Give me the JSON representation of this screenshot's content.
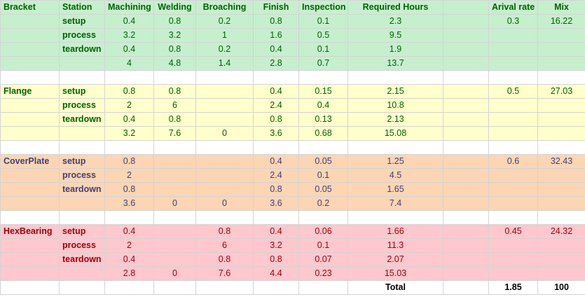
{
  "header": {
    "part": "Bracket",
    "station": "Station",
    "machining": "Machining",
    "welding": "Welding",
    "broaching": "Broaching",
    "finish": "Finish",
    "inspection": "Inspection",
    "required": "Required Hours",
    "arrival": "Arival rate",
    "mix": "Mix"
  },
  "blocks": [
    {
      "name": "",
      "bg": "#c6efce",
      "fg": "#006100",
      "arrival": "0.3",
      "mix": "16.22",
      "rows": [
        {
          "label": "setup",
          "m": "0.4",
          "w": "0.8",
          "b": "0.2",
          "f": "0.8",
          "i": "0.1",
          "r": "2.3"
        },
        {
          "label": "process",
          "m": "3.2",
          "w": "3.2",
          "b": "1",
          "f": "1.6",
          "i": "0.5",
          "r": "9.5"
        },
        {
          "label": "teardown",
          "m": "0.4",
          "w": "0.8",
          "b": "0.2",
          "f": "0.4",
          "i": "0.1",
          "r": "1.9"
        },
        {
          "label": "",
          "m": "4",
          "w": "4.8",
          "b": "1.4",
          "f": "2.8",
          "i": "0.7",
          "r": "13.7"
        }
      ]
    },
    {
      "name": "Flange",
      "bg": "#ffffcc",
      "fg": "#006100",
      "arrival": "0.5",
      "mix": "27.03",
      "rows": [
        {
          "label": "setup",
          "m": "0.8",
          "w": "0.8",
          "b": "",
          "f": "0.4",
          "i": "0.15",
          "r": "2.15"
        },
        {
          "label": "process",
          "m": "2",
          "w": "6",
          "b": "",
          "f": "2.4",
          "i": "0.4",
          "r": "10.8"
        },
        {
          "label": "teardown",
          "m": "0.4",
          "w": "0.8",
          "b": "",
          "f": "0.8",
          "i": "0.13",
          "r": "2.13"
        },
        {
          "label": "",
          "m": "3.2",
          "w": "7.6",
          "b": "0",
          "f": "3.6",
          "i": "0.68",
          "r": "15.08"
        }
      ]
    },
    {
      "name": "CoverPlate",
      "bg": "#fcd5b4",
      "fg": "#3f3f76",
      "arrival": "0.6",
      "mix": "32.43",
      "rows": [
        {
          "label": "setup",
          "m": "0.8",
          "w": "",
          "b": "",
          "f": "0.4",
          "i": "0.05",
          "r": "1.25"
        },
        {
          "label": "process",
          "m": "2",
          "w": "",
          "b": "",
          "f": "2.4",
          "i": "0.1",
          "r": "4.5"
        },
        {
          "label": "teardown",
          "m": "0.8",
          "w": "",
          "b": "",
          "f": "0.8",
          "i": "0.05",
          "r": "1.65"
        },
        {
          "label": "",
          "m": "3.6",
          "w": "0",
          "b": "0",
          "f": "3.6",
          "i": "0.2",
          "r": "7.4"
        }
      ]
    },
    {
      "name": "HexBearing",
      "bg": "#ffc7ce",
      "fg": "#9c0006",
      "arrival": "0.45",
      "mix": "24.32",
      "rows": [
        {
          "label": "setup",
          "m": "0.4",
          "w": "",
          "b": "0.8",
          "f": "0.4",
          "i": "0.06",
          "r": "1.66"
        },
        {
          "label": "process",
          "m": "2",
          "w": "",
          "b": "6",
          "f": "3.2",
          "i": "0.1",
          "r": "11.3"
        },
        {
          "label": "teardown",
          "m": "0.4",
          "w": "",
          "b": "0.8",
          "f": "0.8",
          "i": "0.07",
          "r": "2.07"
        },
        {
          "label": "",
          "m": "2.8",
          "w": "0",
          "b": "7.6",
          "f": "4.4",
          "i": "0.23",
          "r": "15.03"
        }
      ]
    }
  ],
  "total": {
    "label": "Total",
    "arrival": "1.85",
    "mix": "100"
  }
}
